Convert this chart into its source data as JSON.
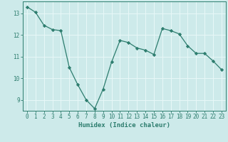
{
  "x": [
    0,
    1,
    2,
    3,
    4,
    5,
    6,
    7,
    8,
    9,
    10,
    11,
    12,
    13,
    14,
    15,
    16,
    17,
    18,
    19,
    20,
    21,
    22,
    23
  ],
  "y": [
    13.3,
    13.05,
    12.45,
    12.25,
    12.2,
    10.5,
    9.7,
    9.0,
    8.6,
    9.5,
    10.75,
    11.75,
    11.65,
    11.4,
    11.3,
    11.1,
    12.3,
    12.2,
    12.05,
    11.5,
    11.15,
    11.15,
    10.8,
    10.4
  ],
  "line_color": "#2d7d6e",
  "marker": "D",
  "marker_size": 2.2,
  "background_color": "#cdeaea",
  "grid_color": "#b0d8d8",
  "xlabel": "Humidex (Indice chaleur)",
  "ylim": [
    8.5,
    13.55
  ],
  "xlim": [
    -0.5,
    23.5
  ],
  "yticks": [
    9,
    10,
    11,
    12,
    13
  ],
  "xticks": [
    0,
    1,
    2,
    3,
    4,
    5,
    6,
    7,
    8,
    9,
    10,
    11,
    12,
    13,
    14,
    15,
    16,
    17,
    18,
    19,
    20,
    21,
    22,
    23
  ],
  "tick_color": "#2d7d6e",
  "label_fontsize": 6.5,
  "tick_fontsize": 5.5,
  "linewidth": 0.9
}
